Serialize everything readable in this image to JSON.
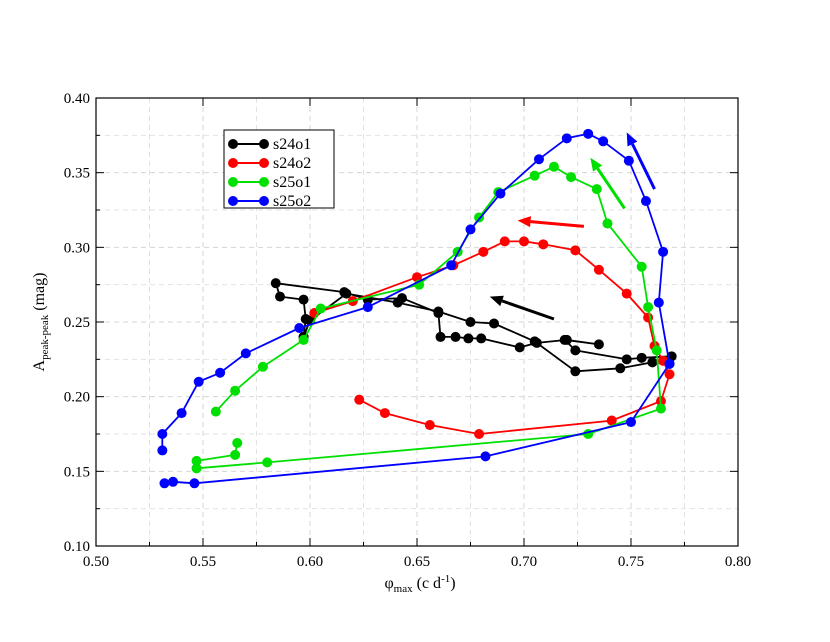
{
  "chart_data": {
    "type": "line",
    "xlim": [
      0.5,
      0.8
    ],
    "ylim": [
      0.1,
      0.4
    ],
    "x_ticks": [
      "0.50",
      "0.55",
      "0.60",
      "0.65",
      "0.70",
      "0.75",
      "0.80"
    ],
    "y_ticks": [
      "0.10",
      "0.15",
      "0.20",
      "0.25",
      "0.30",
      "0.35",
      "0.40"
    ],
    "xlabel": {
      "main": "φ",
      "sub": "max",
      "rest": " (c d",
      "sup": "-1",
      "close": ")"
    },
    "ylabel": {
      "main": "A",
      "sub": "peak-peak",
      "rest": " (mag)"
    },
    "grid": true,
    "legend": "top-left",
    "series": [
      {
        "name": "s24o1",
        "color": "#000000",
        "x": [
          0.769,
          0.755,
          0.748,
          0.724,
          0.719,
          0.735,
          0.72,
          0.706,
          0.698,
          0.68,
          0.674,
          0.668,
          0.661,
          0.66,
          0.643,
          0.627,
          0.616,
          0.584,
          0.586,
          0.597,
          0.598,
          0.597,
          0.597,
          0.6,
          0.617,
          0.641,
          0.66,
          0.675,
          0.686,
          0.705,
          0.724,
          0.745,
          0.76,
          0.768
        ],
        "y": [
          0.227,
          0.226,
          0.225,
          0.231,
          0.238,
          0.235,
          0.238,
          0.236,
          0.233,
          0.239,
          0.239,
          0.24,
          0.24,
          0.256,
          0.266,
          0.265,
          0.27,
          0.276,
          0.267,
          0.265,
          0.252,
          0.24,
          0.24,
          0.251,
          0.269,
          0.263,
          0.257,
          0.25,
          0.249,
          0.237,
          0.217,
          0.219,
          0.223,
          0.222
        ]
      },
      {
        "name": "s24o2",
        "color": "#ff0000",
        "x": [
          0.623,
          0.635,
          0.656,
          0.679,
          0.741,
          0.764,
          0.768,
          0.765,
          0.761,
          0.758,
          0.748,
          0.735,
          0.724,
          0.709,
          0.7,
          0.691,
          0.681,
          0.667,
          0.65,
          0.62,
          0.602
        ],
        "y": [
          0.198,
          0.189,
          0.181,
          0.175,
          0.184,
          0.197,
          0.215,
          0.224,
          0.234,
          0.253,
          0.269,
          0.285,
          0.298,
          0.302,
          0.304,
          0.304,
          0.297,
          0.288,
          0.28,
          0.264,
          0.256
        ],
        "arrow": {
          "from": [
            0.728,
            0.314
          ],
          "to": [
            0.697,
            0.318
          ]
        }
      },
      {
        "name": "s25o1",
        "color": "#00e000",
        "x": [
          0.566,
          0.565,
          0.547,
          0.547,
          0.58,
          0.73,
          0.764,
          0.762,
          0.758,
          0.755,
          0.739,
          0.734,
          0.722,
          0.714,
          0.705,
          0.688,
          0.679,
          0.669,
          0.651,
          0.605,
          0.597,
          0.578,
          0.565,
          0.556
        ],
        "y": [
          0.169,
          0.161,
          0.157,
          0.152,
          0.156,
          0.175,
          0.192,
          0.231,
          0.26,
          0.287,
          0.316,
          0.339,
          0.347,
          0.354,
          0.348,
          0.337,
          0.32,
          0.297,
          0.275,
          0.259,
          0.238,
          0.22,
          0.204,
          0.19
        ],
        "arrow": {
          "from": [
            0.747,
            0.326
          ],
          "to": [
            0.731,
            0.36
          ]
        }
      },
      {
        "name": "s25o2",
        "color": "#0000ff",
        "x": [
          0.531,
          0.531,
          0.54,
          0.548,
          0.558,
          0.57,
          0.595,
          0.627,
          0.666,
          0.675,
          0.689,
          0.707,
          0.72,
          0.73,
          0.737,
          0.749,
          0.757,
          0.765,
          0.763,
          0.768,
          0.75,
          0.682,
          0.546,
          0.536,
          0.532
        ],
        "y": [
          0.164,
          0.175,
          0.189,
          0.21,
          0.216,
          0.229,
          0.246,
          0.26,
          0.288,
          0.312,
          0.336,
          0.359,
          0.373,
          0.376,
          0.371,
          0.358,
          0.331,
          0.297,
          0.263,
          0.222,
          0.183,
          0.16,
          0.142,
          0.143,
          0.142
        ],
        "arrow": {
          "from": [
            0.761,
            0.339
          ],
          "to": [
            0.748,
            0.377
          ]
        }
      }
    ],
    "black_arrow": {
      "from": [
        0.714,
        0.252
      ],
      "to": [
        0.684,
        0.267
      ]
    }
  }
}
